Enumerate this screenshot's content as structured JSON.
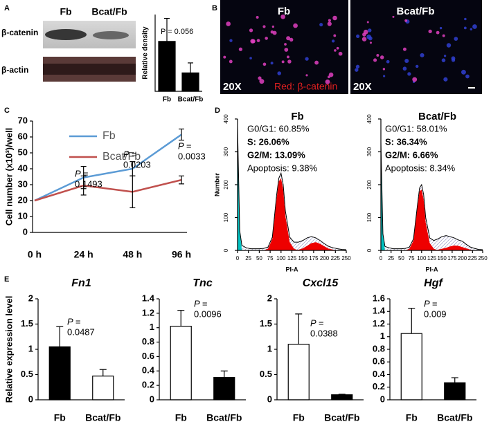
{
  "panels": [
    "A",
    "B",
    "C",
    "D",
    "E"
  ],
  "blot": {
    "lanes": [
      "Fb",
      "Bcat/Fb"
    ],
    "rows": [
      "β-catenin",
      "β-actin"
    ]
  },
  "images": {
    "titles": [
      "Fb",
      "Bcat/Fb"
    ],
    "magnification": [
      "20X",
      "20X"
    ],
    "stain": "Red: β-catenin"
  },
  "chart_data": [
    {
      "type": "bar",
      "categories": [
        "Fb",
        "Bcat/Fb"
      ],
      "values": [
        0.65,
        0.24
      ],
      "errors": [
        0.3,
        0.13
      ],
      "colors": [
        "#000000",
        "#000000"
      ],
      "ylim": [
        0,
        1
      ],
      "ylabel": "Relative density",
      "annotations": [
        [
          "P = 0.056"
        ]
      ]
    },
    {
      "type": "line",
      "categories": [
        "0 h",
        "24 h",
        "48 h",
        "96 h"
      ],
      "series": [
        {
          "name": "Fb",
          "color": "#5b9bd5",
          "values": [
            20,
            34.5,
            40,
            61.5
          ],
          "errors": [
            0,
            7,
            4.5,
            3.5
          ]
        },
        {
          "name": "Bcat/Fb",
          "color": "#c0504d",
          "values": [
            20,
            29.5,
            25.5,
            33
          ],
          "errors": [
            0,
            6,
            10,
            2.5
          ]
        }
      ],
      "ylim": [
        0,
        70
      ],
      "yticks": [
        0,
        10,
        20,
        30,
        40,
        50,
        60,
        70
      ],
      "ylabel": "Cell number (x10³)/well",
      "legend": "upper left",
      "annotations": [
        [
          "P =",
          "0.1493"
        ],
        [
          "P =",
          "0.0203"
        ],
        [
          "P =",
          "0.0033"
        ]
      ]
    },
    {
      "type": "area",
      "title": "Fb",
      "xlabel": "PI-A",
      "ylabel": "Number",
      "x": [
        0,
        5,
        10,
        20,
        30,
        40,
        50,
        60,
        70,
        80,
        90,
        95,
        100,
        105,
        110,
        120,
        130,
        140,
        150,
        160,
        170,
        180,
        190,
        200,
        210,
        220,
        230,
        240,
        250
      ],
      "series": [
        {
          "color": "#00c0c0",
          "fill": true,
          "values": [
            380,
            60,
            0,
            0,
            0,
            0,
            0,
            0,
            0,
            0,
            0,
            0,
            0,
            0,
            0,
            0,
            0,
            0,
            0,
            0,
            0,
            0,
            0,
            0,
            0,
            0,
            0,
            0,
            0
          ]
        },
        {
          "color": "#ee0000",
          "fill": true,
          "values": [
            0,
            0,
            0,
            0,
            0,
            0,
            0,
            0,
            5,
            35,
            160,
            210,
            220,
            185,
            105,
            25,
            5,
            0,
            0,
            0,
            0,
            0,
            0,
            0,
            0,
            0,
            0,
            0,
            0
          ]
        },
        {
          "color": "#ee0000",
          "fill": true,
          "values": [
            0,
            0,
            0,
            0,
            0,
            0,
            0,
            0,
            0,
            0,
            0,
            0,
            0,
            0,
            0,
            0,
            0,
            2,
            6,
            14,
            22,
            25,
            20,
            12,
            5,
            2,
            0,
            0,
            0
          ]
        },
        {
          "color": "#000000",
          "fill": false,
          "values": [
            380,
            60,
            15,
            8,
            5,
            5,
            5,
            6,
            10,
            40,
            170,
            220,
            235,
            200,
            120,
            40,
            25,
            25,
            30,
            38,
            42,
            38,
            30,
            20,
            12,
            8,
            5,
            3,
            2
          ]
        }
      ],
      "xlim": [
        0,
        250
      ],
      "xticks": [
        0,
        25,
        50,
        75,
        100,
        125,
        150,
        175,
        200,
        225,
        250
      ],
      "ylim": [
        0,
        400
      ],
      "yticks": [
        0,
        100,
        200,
        300,
        400
      ],
      "stats": [
        {
          "text": "G0/G1: 60.85%",
          "bold": false
        },
        {
          "text": "S: 26.06%",
          "bold": true
        },
        {
          "text": "G2/M: 13.09%",
          "bold": true
        },
        {
          "text": "Apoptosis: 9.38%",
          "bold": false
        }
      ]
    },
    {
      "type": "area",
      "title": "Bcat/Fb",
      "xlabel": "PI-A",
      "x": [
        0,
        5,
        10,
        20,
        30,
        40,
        50,
        60,
        70,
        80,
        90,
        95,
        100,
        105,
        110,
        120,
        130,
        140,
        150,
        160,
        170,
        180,
        190,
        200,
        210,
        220,
        230,
        240,
        250
      ],
      "series": [
        {
          "color": "#00c0c0",
          "fill": true,
          "values": [
            330,
            50,
            0,
            0,
            0,
            0,
            0,
            0,
            0,
            0,
            0,
            0,
            0,
            0,
            0,
            0,
            0,
            0,
            0,
            0,
            0,
            0,
            0,
            0,
            0,
            0,
            0,
            0,
            0
          ]
        },
        {
          "color": "#ee0000",
          "fill": true,
          "values": [
            0,
            0,
            0,
            0,
            0,
            0,
            0,
            0,
            5,
            30,
            135,
            180,
            185,
            155,
            85,
            22,
            5,
            0,
            0,
            0,
            0,
            0,
            0,
            0,
            0,
            0,
            0,
            0,
            0
          ]
        },
        {
          "color": "#ee0000",
          "fill": true,
          "values": [
            0,
            0,
            0,
            0,
            0,
            0,
            0,
            0,
            0,
            0,
            0,
            0,
            0,
            0,
            0,
            0,
            0,
            2,
            5,
            8,
            12,
            15,
            14,
            10,
            6,
            2,
            0,
            0,
            0
          ]
        },
        {
          "color": "#000000",
          "fill": false,
          "values": [
            330,
            50,
            12,
            8,
            5,
            5,
            5,
            6,
            10,
            35,
            140,
            190,
            200,
            170,
            100,
            38,
            30,
            35,
            42,
            45,
            42,
            38,
            32,
            28,
            18,
            10,
            6,
            3,
            2
          ]
        }
      ],
      "xlim": [
        0,
        250
      ],
      "xticks": [
        0,
        25,
        50,
        75,
        100,
        125,
        150,
        175,
        200,
        225,
        250
      ],
      "ylim": [
        0,
        400
      ],
      "yticks": [
        0,
        100,
        200,
        300,
        400
      ],
      "stats": [
        {
          "text": "G0/G1: 58.01%",
          "bold": false
        },
        {
          "text": "S: 36.34%",
          "bold": true
        },
        {
          "text": "G2/M: 6.66%",
          "bold": true
        },
        {
          "text": "Apoptosis: 8.34%",
          "bold": false
        }
      ]
    },
    {
      "type": "bar",
      "title": "Fn1",
      "categories": [
        "Fb",
        "Bcat/Fb"
      ],
      "values": [
        1.05,
        0.47
      ],
      "errors": [
        0.4,
        0.13
      ],
      "colors": [
        "#000000",
        "#ffffff"
      ],
      "ylim": [
        0,
        2
      ],
      "yticks": [
        0,
        0.5,
        1,
        1.5,
        2
      ],
      "ylabel": "Relative expression level",
      "annotations": [
        [
          "P =",
          "0.0487"
        ]
      ]
    },
    {
      "type": "bar",
      "title": "Tnc",
      "categories": [
        "Fb",
        "Bcat/Fb"
      ],
      "values": [
        1.02,
        0.31
      ],
      "errors": [
        0.22,
        0.09
      ],
      "colors": [
        "#ffffff",
        "#000000"
      ],
      "ylim": [
        0,
        1.4
      ],
      "yticks": [
        0,
        0.2,
        0.4,
        0.6,
        0.8,
        1,
        1.2,
        1.4
      ],
      "annotations": [
        [
          "P =",
          "0.0096"
        ]
      ]
    },
    {
      "type": "bar",
      "title": "Cxcl15",
      "categories": [
        "Fb",
        "Bcat/Fb"
      ],
      "values": [
        1.1,
        0.1
      ],
      "errors": [
        0.6,
        0.01
      ],
      "colors": [
        "#ffffff",
        "#000000"
      ],
      "ylim": [
        0,
        2
      ],
      "yticks": [
        0,
        0.5,
        1,
        1.5,
        2
      ],
      "annotations": [
        [
          "P =",
          "0.0388"
        ]
      ]
    },
    {
      "type": "bar",
      "title": "Hgf",
      "categories": [
        "Fb",
        "Bcat/Fb"
      ],
      "values": [
        1.05,
        0.27
      ],
      "errors": [
        0.4,
        0.08
      ],
      "colors": [
        "#ffffff",
        "#000000"
      ],
      "ylim": [
        0,
        1.6
      ],
      "yticks": [
        0,
        0.2,
        0.4,
        0.6,
        0.8,
        1,
        1.2,
        1.4,
        1.6
      ],
      "annotations": [
        [
          "P =",
          "0.009"
        ]
      ]
    }
  ]
}
